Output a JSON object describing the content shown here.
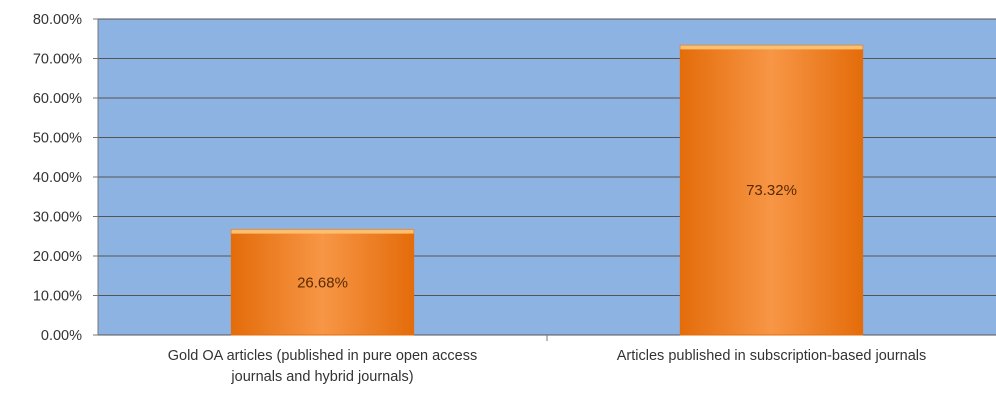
{
  "chart_data": {
    "type": "bar",
    "title": "",
    "xlabel": "",
    "ylabel": "",
    "categories": [
      [
        "Gold OA articles (published in pure open access",
        "journals and hybrid journals)"
      ],
      [
        "Articles published in subscription-based journals"
      ]
    ],
    "values": [
      26.68,
      73.32
    ],
    "data_labels": [
      "26.68%",
      "73.32%"
    ],
    "ylim": [
      0,
      80
    ],
    "y_ticks": [
      {
        "value": 0,
        "label": "0.00%"
      },
      {
        "value": 10,
        "label": "10.00%"
      },
      {
        "value": 20,
        "label": "20.00%"
      },
      {
        "value": 30,
        "label": "30.00%"
      },
      {
        "value": 40,
        "label": "40.00%"
      },
      {
        "value": 50,
        "label": "50.00%"
      },
      {
        "value": 60,
        "label": "60.00%"
      },
      {
        "value": 70,
        "label": "70.00%"
      },
      {
        "value": 80,
        "label": "80.00%"
      }
    ],
    "grid": true,
    "legend": "none",
    "colors": {
      "plot_background": "#8db3e2",
      "bar_fill": "#f79646",
      "bar_fill_light": "#fbbf6e",
      "bar_fill_dark": "#e46c0a",
      "gridline": "#555555"
    }
  }
}
